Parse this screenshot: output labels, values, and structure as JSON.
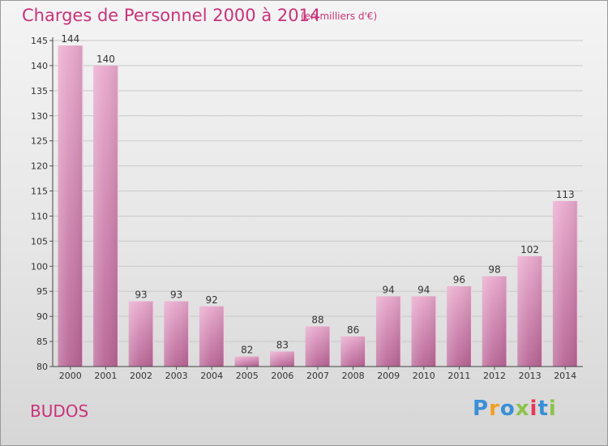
{
  "chart_data": {
    "type": "bar",
    "title": "Charges de Personnel 2000 à 2014",
    "subtitle": "(en milliers d'€)",
    "categories": [
      "2000",
      "2001",
      "2002",
      "2003",
      "2004",
      "2005",
      "2006",
      "2007",
      "2008",
      "2009",
      "2010",
      "2011",
      "2012",
      "2013",
      "2014"
    ],
    "values": [
      144,
      140,
      93,
      93,
      92,
      82,
      83,
      88,
      86,
      94,
      94,
      96,
      98,
      102,
      113
    ],
    "ylim": [
      80,
      145
    ],
    "yticks": [
      80,
      85,
      90,
      95,
      100,
      105,
      110,
      115,
      120,
      125,
      130,
      135,
      140,
      145
    ],
    "grid": true,
    "bar_color": "#d47aa8"
  },
  "commune": "BUDOS",
  "logo": {
    "letters": [
      "P",
      "r",
      "o",
      "x",
      "i",
      "t",
      "i"
    ],
    "colors": [
      "#3a8fd6",
      "#f0a020",
      "#3a8fd6",
      "#8bc34a",
      "#e8385a",
      "#3a8fd6",
      "#8bc34a"
    ]
  }
}
